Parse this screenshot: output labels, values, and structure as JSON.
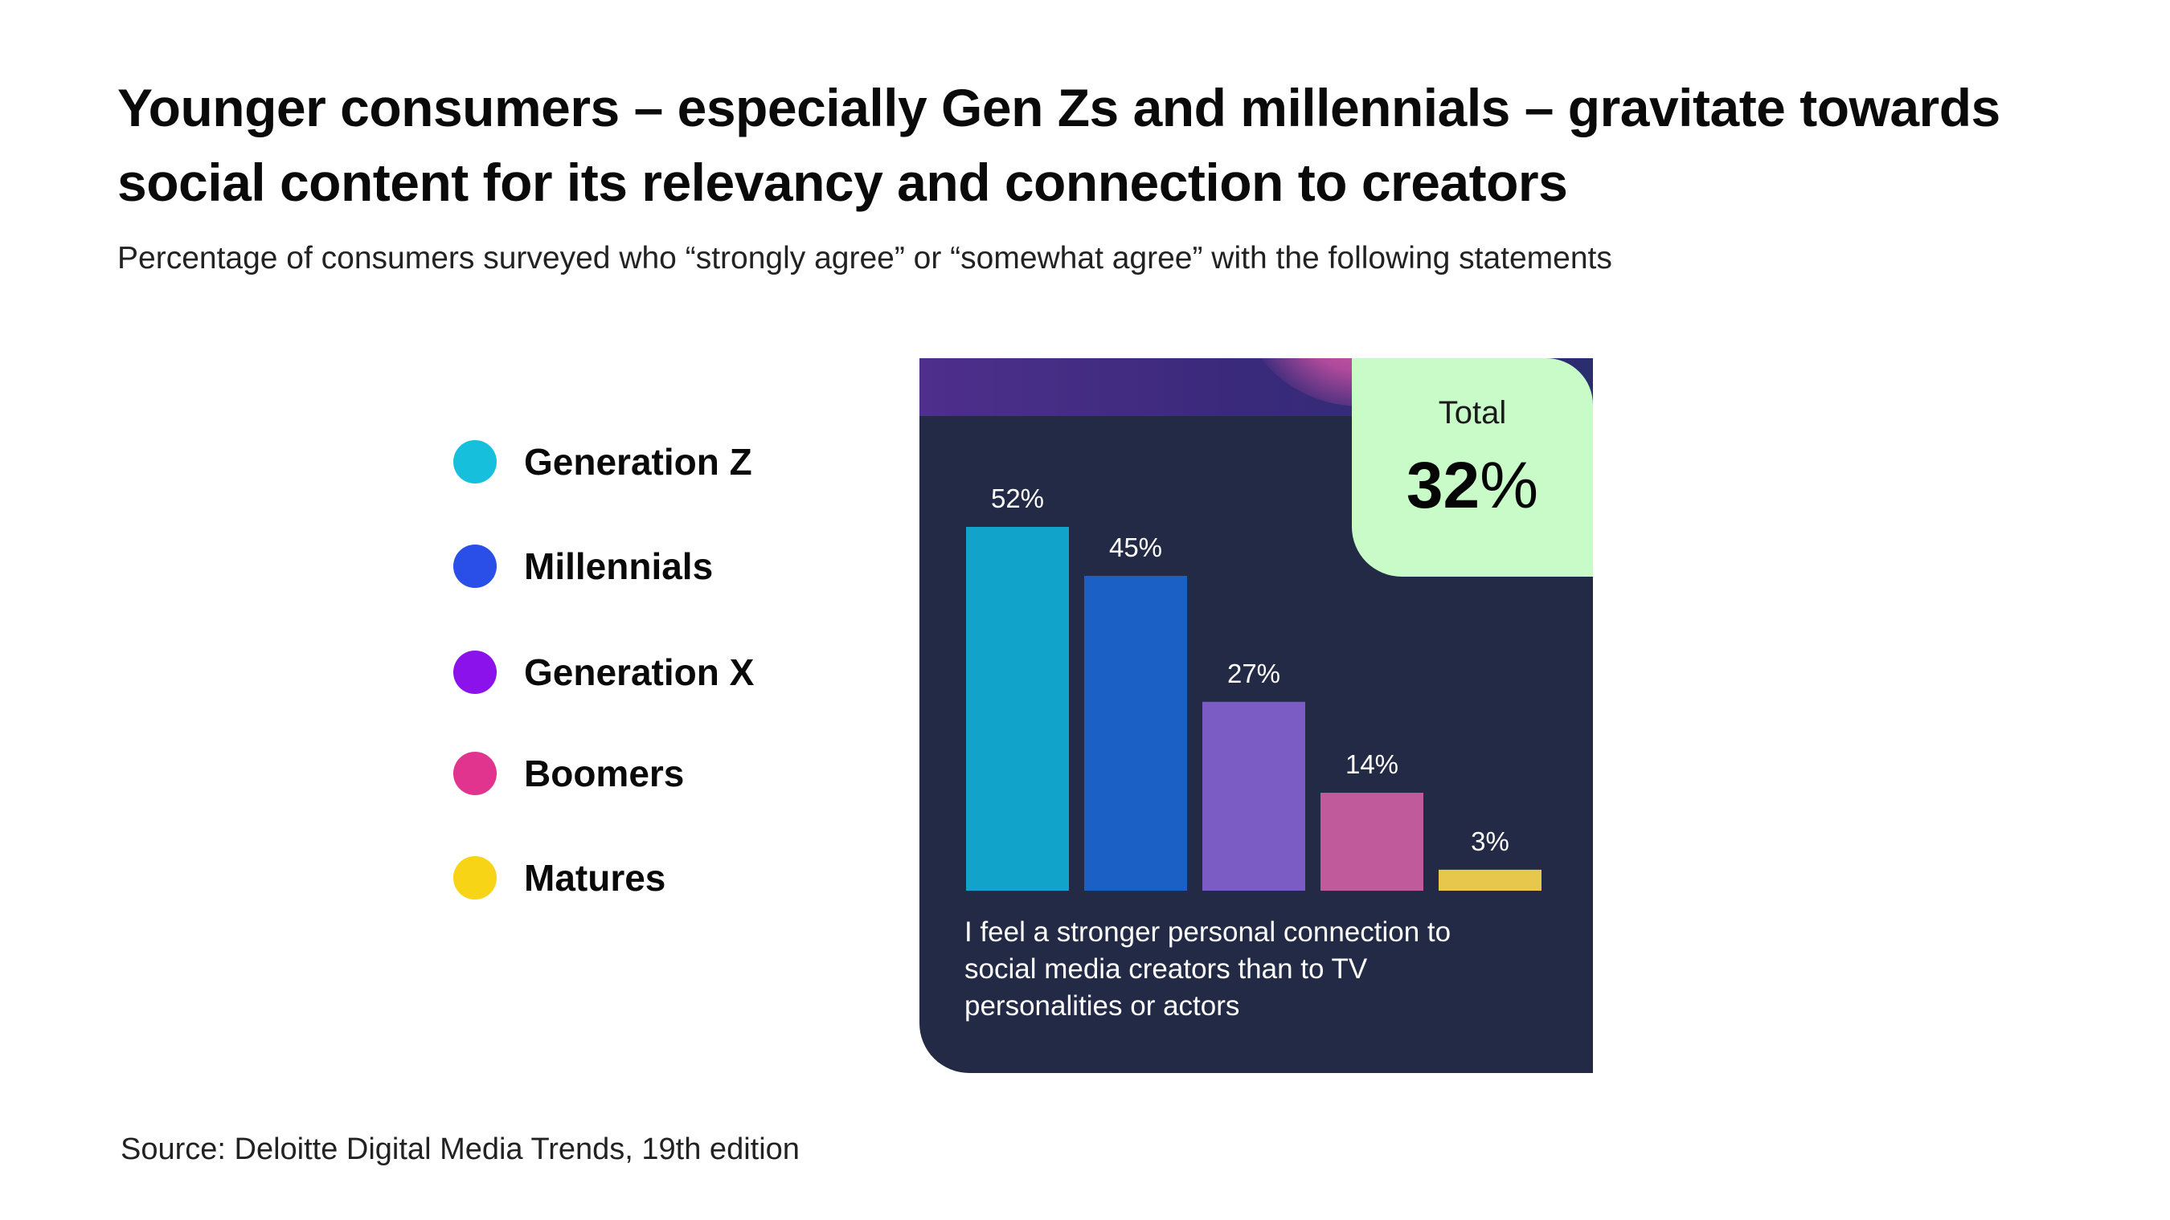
{
  "header": {
    "title": "Younger consumers – especially Gen Zs and millennials – gravitate towards social content for its relevancy and connection to creators",
    "subtitle": "Percentage of consumers surveyed who “strongly agree” or “somewhat agree” with the following statements"
  },
  "legend": [
    {
      "label": "Generation Z",
      "color": "#16c0dc"
    },
    {
      "label": "Millennials",
      "color": "#2a4fe8"
    },
    {
      "label": "Generation X",
      "color": "#8b12ea"
    },
    {
      "label": "Boomers",
      "color": "#e0348f"
    },
    {
      "label": "Matures",
      "color": "#f7d416"
    }
  ],
  "total": {
    "label": "Total",
    "value": "32",
    "unit": "%"
  },
  "statement": "I feel a stronger personal connection to social media creators than to TV personalities or actors",
  "source": "Source: Deloitte Digital Media Trends, 19th edition",
  "chart_data": {
    "type": "bar",
    "categories": [
      "Generation Z",
      "Millennials",
      "Generation X",
      "Boomers",
      "Matures"
    ],
    "values": [
      52,
      45,
      27,
      14,
      3
    ],
    "value_labels": [
      "52%",
      "45%",
      "27%",
      "14%",
      "3%"
    ],
    "colors": [
      "#12a3cb",
      "#1b60c4",
      "#7a5cc4",
      "#c05a9b",
      "#e8c84c"
    ],
    "unit": "%",
    "ylim": [
      0,
      52
    ],
    "grid": false,
    "legend_position": "left"
  }
}
